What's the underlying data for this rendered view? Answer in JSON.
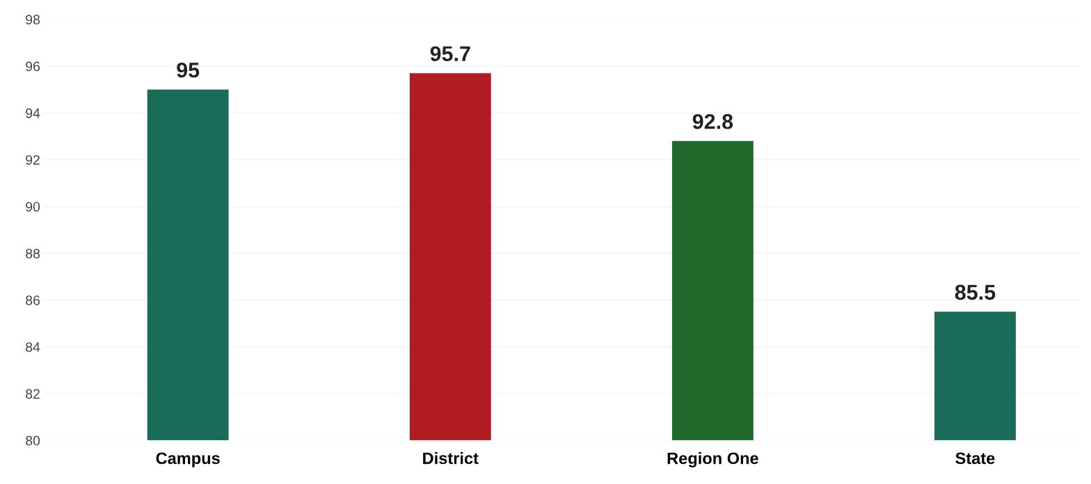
{
  "chart_data": {
    "type": "bar",
    "categories": [
      "Campus",
      "District",
      "Region One",
      "State"
    ],
    "values": [
      95,
      95.7,
      92.8,
      85.5
    ],
    "colors": [
      "#1a6b58",
      "#b01c22",
      "#1f6a2a",
      "#1a6b58"
    ],
    "ylim": [
      80,
      98
    ],
    "yticks": [
      80,
      82,
      84,
      86,
      88,
      90,
      92,
      94,
      96,
      98
    ],
    "grid": "y",
    "data_labels": true
  }
}
